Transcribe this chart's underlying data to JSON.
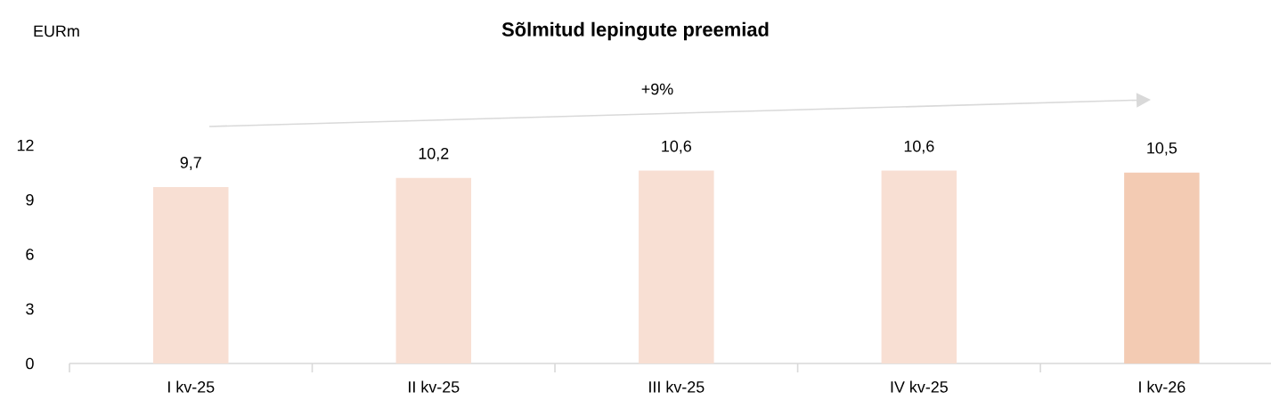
{
  "chart_data": {
    "type": "bar",
    "title": "Sõlmitud lepingute preemiad",
    "categories": [
      "I kv-25",
      "II kv-25",
      "III kv-25",
      "IV kv-25",
      "I kv-26"
    ],
    "values": [
      9.7,
      10.2,
      10.6,
      10.6,
      10.5
    ],
    "colors": [
      "#f8dfd3",
      "#f8dfd3",
      "#f8dfd3",
      "#f8dfd3",
      "#f3cbb3"
    ],
    "value_labels": [
      "9,7",
      "10,2",
      "10,6",
      "10,6",
      "10,5"
    ],
    "ylim": [
      0,
      12
    ],
    "yticks": [
      0,
      3,
      6,
      9,
      12
    ],
    "annotations": [
      "EURm",
      "+9%"
    ]
  }
}
